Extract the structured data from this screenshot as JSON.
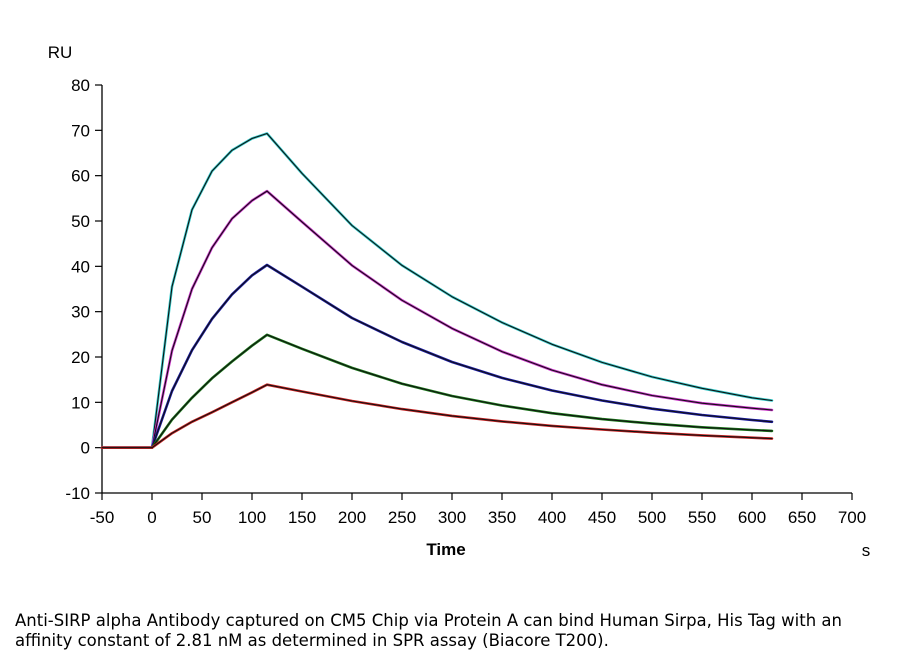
{
  "chart_data": {
    "type": "line",
    "title": "",
    "xlabel": "Time",
    "xunit": "s",
    "ylabel": "RU",
    "xlim": [
      -50,
      700
    ],
    "ylim": [
      -10,
      80
    ],
    "xticks": [
      -50,
      0,
      50,
      100,
      150,
      200,
      250,
      300,
      350,
      400,
      450,
      500,
      550,
      600,
      650,
      700
    ],
    "yticks": [
      -10,
      0,
      10,
      20,
      30,
      40,
      50,
      60,
      70,
      80
    ],
    "grid": false,
    "legend": "none",
    "x": [
      -50,
      0,
      20,
      40,
      60,
      80,
      100,
      115,
      150,
      200,
      250,
      300,
      350,
      400,
      450,
      500,
      550,
      600,
      620
    ],
    "series": [
      {
        "color": "#33cccc",
        "values": [
          0,
          0,
          35.5,
          52.5,
          61.0,
          65.6,
          68.2,
          69.3,
          60.5,
          49.0,
          40.2,
          33.3,
          27.6,
          22.8,
          18.8,
          15.6,
          13.1,
          11.0,
          10.4
        ]
      },
      {
        "color": "#cc33cc",
        "values": [
          0,
          0,
          21.4,
          35.0,
          44.1,
          50.5,
          54.5,
          56.6,
          49.8,
          40.2,
          32.5,
          26.3,
          21.2,
          17.1,
          13.9,
          11.5,
          9.8,
          8.7,
          8.3
        ]
      },
      {
        "color": "#1a1aa6",
        "values": [
          0,
          0,
          12.5,
          21.5,
          28.4,
          33.8,
          38.0,
          40.3,
          35.5,
          28.6,
          23.3,
          18.9,
          15.4,
          12.6,
          10.4,
          8.6,
          7.2,
          6.1,
          5.7
        ]
      },
      {
        "color": "#1a7a1a",
        "values": [
          0,
          0,
          6.2,
          11.0,
          15.3,
          19.0,
          22.5,
          24.9,
          21.8,
          17.6,
          14.1,
          11.4,
          9.3,
          7.6,
          6.3,
          5.3,
          4.5,
          3.9,
          3.7
        ]
      },
      {
        "color": "#cc2222",
        "values": [
          0,
          0,
          3.2,
          5.7,
          7.8,
          10.0,
          12.2,
          13.9,
          12.4,
          10.3,
          8.5,
          7.0,
          5.8,
          4.8,
          4.0,
          3.3,
          2.7,
          2.2,
          2.0
        ]
      }
    ]
  },
  "caption": "Anti-SIRP alpha Antibody captured on CM5 Chip via Protein A can bind Human Sirpa, His Tag with an affinity constant of 2.81 nM as determined in SPR assay (Biacore T200)."
}
